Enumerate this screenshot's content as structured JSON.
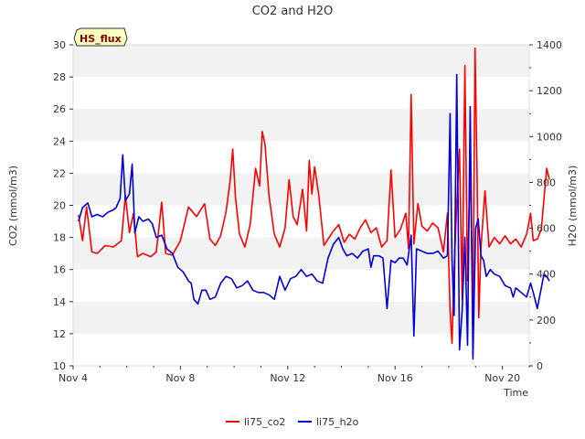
{
  "chart_data": {
    "type": "line",
    "title": "CO2 and H2O",
    "badge": "HS_flux",
    "xlabel": "Time",
    "ylabel_left": "CO2 (mmol/m3)",
    "ylabel_right": "H2O (mmol/m3)",
    "x_range": [
      "2021-11-04",
      "2021-11-21"
    ],
    "x_ticks": [
      "Nov 4",
      "Nov 8",
      "Nov 12",
      "Nov 16",
      "Nov 20"
    ],
    "x_tick_days": [
      4,
      8,
      12,
      16,
      20
    ],
    "ylim_left": [
      10,
      30
    ],
    "yticks_left": [
      10,
      12,
      14,
      16,
      18,
      20,
      22,
      24,
      26,
      28,
      30
    ],
    "ylim_right": [
      0,
      1400
    ],
    "yticks_right": [
      0,
      200,
      400,
      600,
      800,
      1000,
      1200,
      1400
    ],
    "grid": "horizontal bands",
    "legend_position": "bottom",
    "colors": {
      "li75_co2": "#ff0000",
      "li75_h2o": "#0000dd",
      "band": "#f2f2f2"
    },
    "series": [
      {
        "name": "li75_co2",
        "axis": "left",
        "points": [
          [
            4.2,
            19.4
          ],
          [
            4.35,
            17.8
          ],
          [
            4.5,
            19.9
          ],
          [
            4.7,
            17.1
          ],
          [
            4.9,
            17.0
          ],
          [
            5.2,
            17.5
          ],
          [
            5.5,
            17.4
          ],
          [
            5.8,
            17.8
          ],
          [
            5.95,
            20.6
          ],
          [
            6.1,
            18.3
          ],
          [
            6.25,
            19.5
          ],
          [
            6.4,
            16.8
          ],
          [
            6.6,
            17.0
          ],
          [
            6.9,
            16.8
          ],
          [
            7.1,
            17.1
          ],
          [
            7.3,
            20.2
          ],
          [
            7.45,
            17.0
          ],
          [
            7.7,
            16.9
          ],
          [
            8.0,
            17.8
          ],
          [
            8.3,
            19.9
          ],
          [
            8.6,
            19.3
          ],
          [
            8.9,
            20.1
          ],
          [
            9.1,
            17.9
          ],
          [
            9.3,
            17.5
          ],
          [
            9.5,
            18.1
          ],
          [
            9.7,
            19.6
          ],
          [
            9.85,
            21.5
          ],
          [
            9.95,
            23.5
          ],
          [
            10.05,
            20.5
          ],
          [
            10.2,
            18.2
          ],
          [
            10.4,
            17.4
          ],
          [
            10.6,
            18.8
          ],
          [
            10.8,
            22.3
          ],
          [
            10.95,
            21.2
          ],
          [
            11.05,
            24.6
          ],
          [
            11.15,
            23.8
          ],
          [
            11.3,
            20.6
          ],
          [
            11.5,
            18.2
          ],
          [
            11.7,
            17.4
          ],
          [
            11.9,
            18.6
          ],
          [
            12.05,
            21.6
          ],
          [
            12.2,
            19.3
          ],
          [
            12.35,
            18.8
          ],
          [
            12.55,
            21.0
          ],
          [
            12.7,
            18.4
          ],
          [
            12.8,
            22.8
          ],
          [
            12.9,
            20.7
          ],
          [
            13.0,
            22.4
          ],
          [
            13.15,
            20.7
          ],
          [
            13.35,
            17.5
          ],
          [
            13.5,
            17.9
          ],
          [
            13.7,
            18.4
          ],
          [
            13.9,
            18.8
          ],
          [
            14.1,
            17.7
          ],
          [
            14.3,
            18.2
          ],
          [
            14.5,
            17.9
          ],
          [
            14.7,
            18.6
          ],
          [
            14.9,
            19.1
          ],
          [
            15.1,
            18.3
          ],
          [
            15.3,
            18.6
          ],
          [
            15.5,
            17.4
          ],
          [
            15.7,
            17.8
          ],
          [
            15.85,
            22.2
          ],
          [
            16.0,
            18.0
          ],
          [
            16.2,
            18.5
          ],
          [
            16.4,
            19.5
          ],
          [
            16.5,
            17.3
          ],
          [
            16.6,
            26.9
          ],
          [
            16.7,
            17.6
          ],
          [
            16.85,
            20.1
          ],
          [
            17.0,
            18.7
          ],
          [
            17.2,
            18.4
          ],
          [
            17.4,
            18.9
          ],
          [
            17.6,
            18.6
          ],
          [
            17.8,
            17.1
          ],
          [
            17.95,
            19.5
          ],
          [
            18.05,
            13.4
          ],
          [
            18.12,
            11.4
          ],
          [
            18.2,
            16.0
          ],
          [
            18.3,
            20.1
          ],
          [
            18.4,
            23.5
          ],
          [
            18.5,
            14.1
          ],
          [
            18.6,
            28.7
          ],
          [
            18.7,
            15.3
          ],
          [
            18.8,
            22.8
          ],
          [
            18.9,
            13.0
          ],
          [
            18.98,
            29.8
          ],
          [
            19.05,
            22.5
          ],
          [
            19.12,
            13.0
          ],
          [
            19.2,
            17.4
          ],
          [
            19.35,
            20.9
          ],
          [
            19.5,
            17.4
          ],
          [
            19.7,
            18.0
          ],
          [
            19.9,
            17.6
          ],
          [
            20.1,
            18.1
          ],
          [
            20.3,
            17.6
          ],
          [
            20.5,
            17.9
          ],
          [
            20.7,
            17.4
          ],
          [
            20.9,
            18.2
          ],
          [
            21.05,
            19.5
          ],
          [
            21.15,
            17.8
          ],
          [
            21.3,
            17.9
          ],
          [
            21.45,
            18.5
          ],
          [
            21.55,
            20.4
          ],
          [
            21.65,
            22.3
          ],
          [
            21.75,
            21.6
          ]
        ]
      },
      {
        "name": "li75_h2o",
        "axis": "right",
        "points": [
          [
            4.2,
            630
          ],
          [
            4.35,
            690
          ],
          [
            4.55,
            710
          ],
          [
            4.7,
            650
          ],
          [
            4.9,
            660
          ],
          [
            5.1,
            650
          ],
          [
            5.3,
            670
          ],
          [
            5.5,
            680
          ],
          [
            5.6,
            690
          ],
          [
            5.75,
            730
          ],
          [
            5.85,
            920
          ],
          [
            5.95,
            720
          ],
          [
            6.1,
            750
          ],
          [
            6.2,
            880
          ],
          [
            6.3,
            580
          ],
          [
            6.45,
            650
          ],
          [
            6.6,
            630
          ],
          [
            6.8,
            640
          ],
          [
            6.95,
            620
          ],
          [
            7.1,
            560
          ],
          [
            7.3,
            570
          ],
          [
            7.5,
            510
          ],
          [
            7.7,
            490
          ],
          [
            7.9,
            430
          ],
          [
            8.1,
            410
          ],
          [
            8.3,
            370
          ],
          [
            8.4,
            360
          ],
          [
            8.5,
            290
          ],
          [
            8.65,
            270
          ],
          [
            8.8,
            330
          ],
          [
            8.95,
            330
          ],
          [
            9.1,
            290
          ],
          [
            9.3,
            300
          ],
          [
            9.5,
            360
          ],
          [
            9.7,
            390
          ],
          [
            9.9,
            380
          ],
          [
            10.1,
            340
          ],
          [
            10.3,
            350
          ],
          [
            10.5,
            370
          ],
          [
            10.7,
            330
          ],
          [
            10.9,
            320
          ],
          [
            11.1,
            320
          ],
          [
            11.3,
            310
          ],
          [
            11.5,
            290
          ],
          [
            11.7,
            390
          ],
          [
            11.9,
            330
          ],
          [
            12.1,
            380
          ],
          [
            12.3,
            390
          ],
          [
            12.5,
            420
          ],
          [
            12.7,
            390
          ],
          [
            12.9,
            400
          ],
          [
            13.1,
            370
          ],
          [
            13.3,
            360
          ],
          [
            13.5,
            470
          ],
          [
            13.7,
            530
          ],
          [
            13.9,
            560
          ],
          [
            14.05,
            510
          ],
          [
            14.2,
            480
          ],
          [
            14.4,
            490
          ],
          [
            14.6,
            470
          ],
          [
            14.8,
            500
          ],
          [
            15.0,
            510
          ],
          [
            15.1,
            430
          ],
          [
            15.2,
            480
          ],
          [
            15.4,
            480
          ],
          [
            15.55,
            470
          ],
          [
            15.7,
            250
          ],
          [
            15.85,
            460
          ],
          [
            16.0,
            450
          ],
          [
            16.15,
            470
          ],
          [
            16.3,
            470
          ],
          [
            16.45,
            440
          ],
          [
            16.6,
            570
          ],
          [
            16.7,
            130
          ],
          [
            16.8,
            510
          ],
          [
            17.0,
            500
          ],
          [
            17.2,
            490
          ],
          [
            17.4,
            490
          ],
          [
            17.6,
            500
          ],
          [
            17.8,
            470
          ],
          [
            17.95,
            480
          ],
          [
            18.05,
            1100
          ],
          [
            18.12,
            460
          ],
          [
            18.2,
            220
          ],
          [
            18.3,
            1270
          ],
          [
            18.4,
            70
          ],
          [
            18.5,
            240
          ],
          [
            18.6,
            560
          ],
          [
            18.7,
            90
          ],
          [
            18.8,
            1130
          ],
          [
            18.9,
            30
          ],
          [
            19.0,
            600
          ],
          [
            19.1,
            640
          ],
          [
            19.2,
            480
          ],
          [
            19.3,
            460
          ],
          [
            19.4,
            390
          ],
          [
            19.55,
            420
          ],
          [
            19.7,
            400
          ],
          [
            19.9,
            390
          ],
          [
            20.1,
            350
          ],
          [
            20.3,
            340
          ],
          [
            20.4,
            300
          ],
          [
            20.5,
            340
          ],
          [
            20.7,
            320
          ],
          [
            20.9,
            300
          ],
          [
            21.05,
            360
          ],
          [
            21.15,
            320
          ],
          [
            21.3,
            250
          ],
          [
            21.45,
            340
          ],
          [
            21.55,
            400
          ],
          [
            21.65,
            390
          ],
          [
            21.75,
            370
          ]
        ]
      }
    ]
  }
}
